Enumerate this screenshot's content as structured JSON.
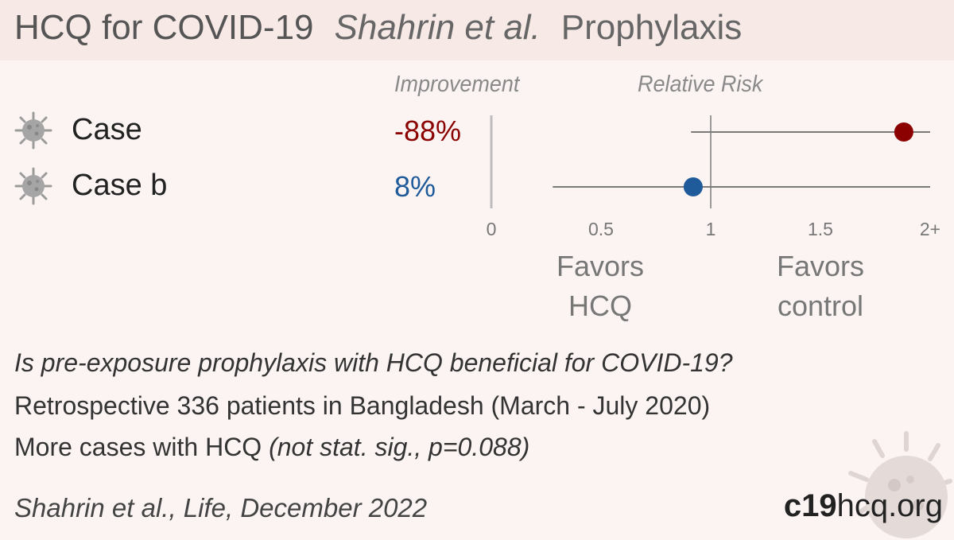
{
  "header": {
    "title": "HCQ for COVID-19",
    "authors": "Shahrin et al.",
    "category": "Prophylaxis"
  },
  "columns": {
    "improvement": "Improvement",
    "relative_risk": "Relative Risk"
  },
  "rows": [
    {
      "label": "Case",
      "improvement": "-88%",
      "color": "#8b0000"
    },
    {
      "label": "Case b",
      "improvement": "8%",
      "color": "#1f5a9a"
    }
  ],
  "chart_data": {
    "type": "scatter",
    "x_label": "Relative Risk",
    "xlim": [
      0,
      2
    ],
    "ticks": [
      "0",
      "0.5",
      "1",
      "1.5",
      "2+"
    ],
    "tick_values": [
      0,
      0.5,
      1,
      1.5,
      2
    ],
    "series": [
      {
        "name": "Case",
        "rr": 1.88,
        "ci_low": 0.91,
        "ci_high": 2.0,
        "ci_truncated": true,
        "color": "#8b0000"
      },
      {
        "name": "Case b",
        "rr": 0.92,
        "ci_low": 0.28,
        "ci_high": 2.0,
        "ci_truncated": true,
        "color": "#1f5a9a"
      }
    ]
  },
  "favors": {
    "left_line1": "Favors",
    "left_line2": "HCQ",
    "right_line1": "Favors",
    "right_line2": "control"
  },
  "text": {
    "question": "Is pre-exposure prophylaxis with HCQ beneficial for COVID-19?",
    "line1": "Retrospective 336 patients in Bangladesh (March - July 2020)",
    "line2_main": "More cases with HCQ ",
    "line2_italic": "(not stat. sig., p=0.088)",
    "citation": "Shahrin et al., Life, December 2022"
  },
  "brand": {
    "bold": "c19",
    "rest": "hcq.org"
  }
}
